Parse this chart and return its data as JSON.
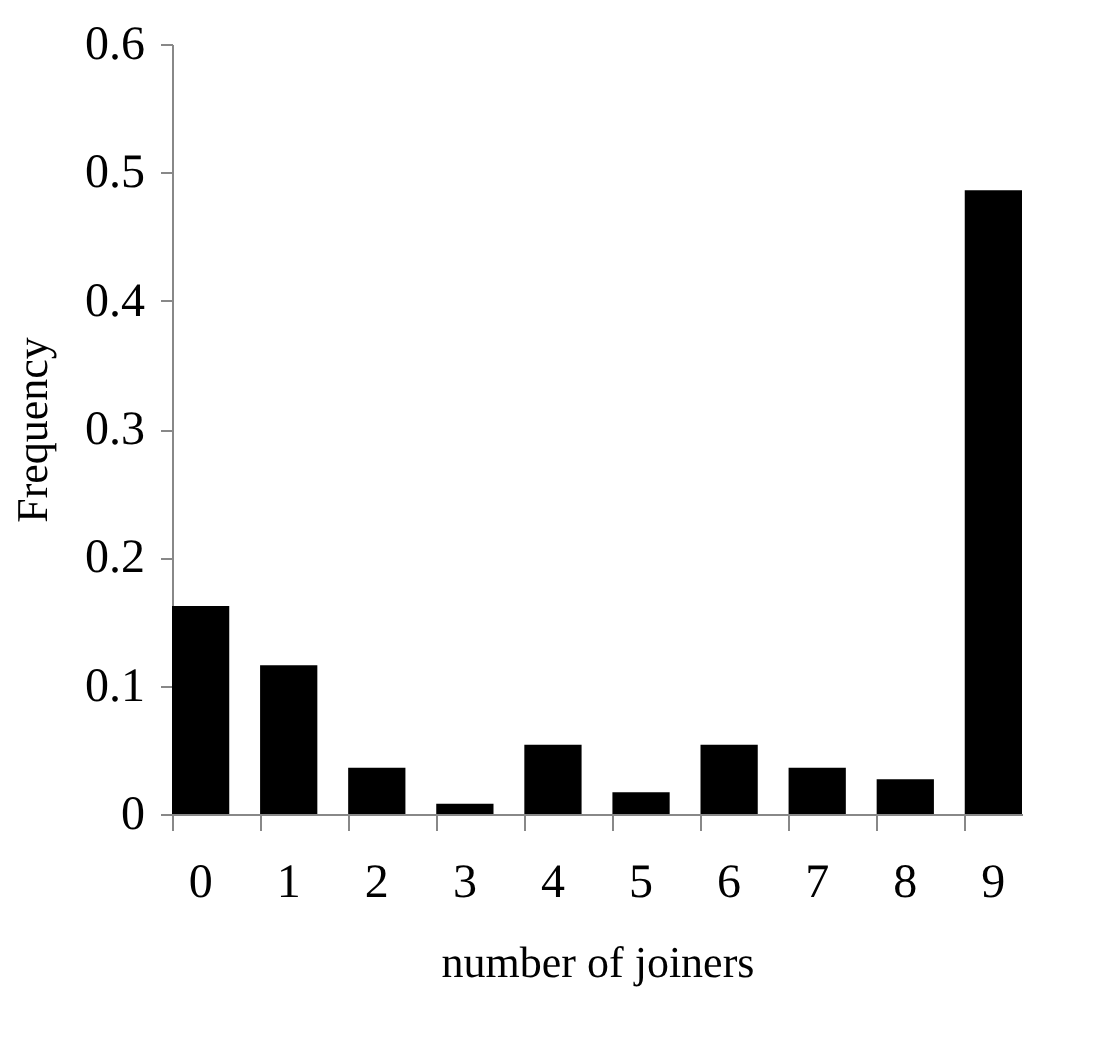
{
  "chart_data": {
    "type": "bar",
    "xlabel": "number of joiners",
    "ylabel": "Frequency",
    "categories": [
      "0",
      "1",
      "2",
      "3",
      "4",
      "5",
      "6",
      "7",
      "8",
      "9"
    ],
    "values": [
      0.162,
      0.116,
      0.036,
      0.008,
      0.054,
      0.017,
      0.054,
      0.036,
      0.027,
      0.486
    ],
    "color": "#000000",
    "ylim": [
      0,
      0.6
    ],
    "yticks": [
      0,
      0.1,
      0.2,
      0.3,
      0.4,
      0.5,
      0.6
    ],
    "grid": false
  }
}
